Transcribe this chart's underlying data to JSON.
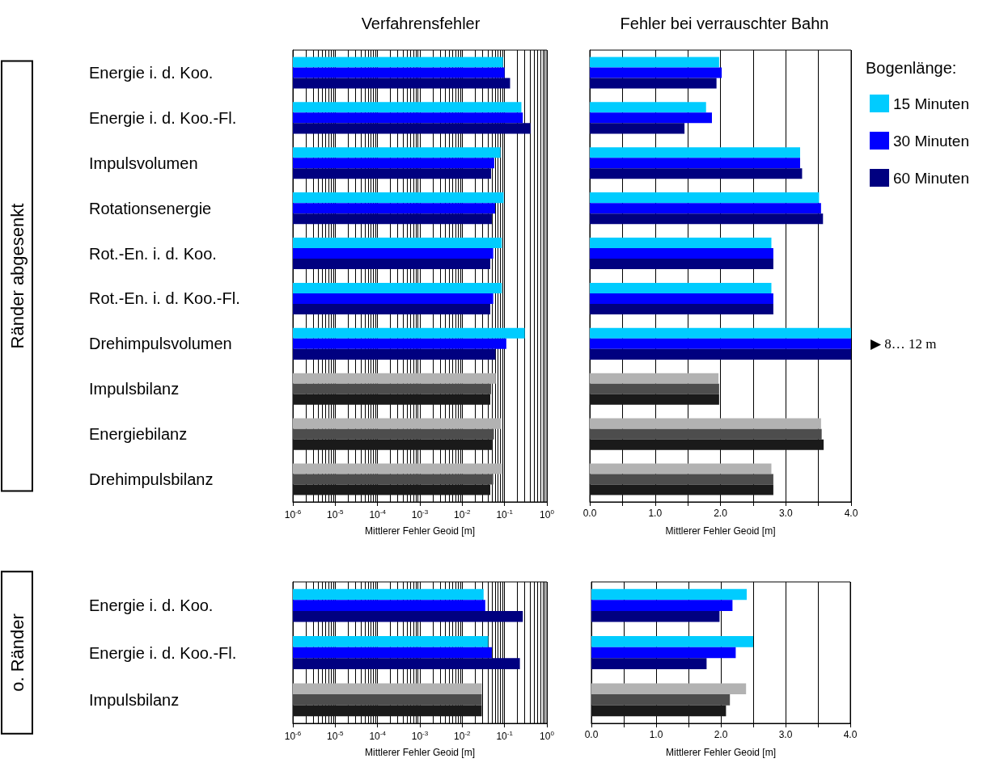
{
  "chart_data": [
    {
      "type": "bar",
      "orientation": "horizontal",
      "title": "Verfahrensfehler",
      "xlabel": "Mittlerer Fehler Geoid [m]",
      "ylabel": "Ränder abgesenkt",
      "log": "x",
      "grid": "x",
      "categories": [
        "Energie i. d. Koo.",
        "Energie i. d. Koo.-Fl.",
        "Impulsvolumen",
        "Rotationsenergie",
        "Rot.-En. i. d. Koo.",
        "Rot.-En. i. d. Koo.-Fl.",
        "Drehimpulsvolumen",
        "Impulsbilanz",
        "Energiebilanz",
        "Drehimpulsbilanz"
      ],
      "xlim": [
        1e-06,
        1
      ],
      "xticks": [
        {
          "value": 1e-06,
          "label": "10$^{-6}$"
        },
        {
          "value": 1e-05,
          "label": "10$^{-5}$"
        },
        {
          "value": 0.0001,
          "label": "10$^{-4}$"
        },
        {
          "value": 0.001,
          "label": "10$^{-3}$"
        },
        {
          "value": 0.01,
          "label": "10$^{-2}$"
        },
        {
          "value": 0.1,
          "label": "10$^{-1}$"
        },
        {
          "value": 1,
          "label": "10$^{0}$"
        }
      ],
      "series": [
        {
          "color": "#00ccff",
          "colors": [
            "#00ccff",
            "#00ccff",
            "#00ccff",
            "#00ccff",
            "#00ccff",
            "#00ccff",
            "#00ccff",
            "#b2b2b2",
            "#b2b2b2",
            "#b2b2b2"
          ],
          "values": [
            0.092,
            0.25,
            0.08,
            0.095,
            0.086,
            0.086,
            0.3,
            0.062,
            0.083,
            0.086
          ]
        },
        {
          "color": "#0000ff",
          "colors": [
            "#0000ff",
            "#0000ff",
            "#0000ff",
            "#0000ff",
            "#0000ff",
            "#0000ff",
            "#0000ff",
            "#4d4d4d",
            "#4d4d4d",
            "#4d4d4d"
          ],
          "values": [
            0.1,
            0.27,
            0.057,
            0.06,
            0.054,
            0.054,
            0.11,
            0.048,
            0.056,
            0.054
          ]
        },
        {
          "color": "#000080",
          "colors": [
            "#000080",
            "#000080",
            "#000080",
            "#000080",
            "#000080",
            "#000080",
            "#000080",
            "#1a1a1a",
            "#1a1a1a",
            "#1a1a1a"
          ],
          "values": [
            0.135,
            0.41,
            0.048,
            0.05,
            0.046,
            0.046,
            0.061,
            0.046,
            0.05,
            0.046
          ]
        }
      ]
    },
    {
      "type": "bar",
      "orientation": "horizontal",
      "title": "Fehler bei verrauschter Bahn",
      "xlabel": "Mittlerer Fehler Geoid [m]",
      "grid": "x",
      "tick_labels": "x",
      "legend": "right",
      "legend_title": "Bogenlänge:",
      "annotations": [
        {
          "text": "▶ 8… 12 m",
          "x": 4,
          "y": "Drehimpulsvolumen"
        }
      ],
      "categories": [
        "Energie i. d. Koo.",
        "Energie i. d. Koo.-Fl.",
        "Impulsvolumen",
        "Rotationsenergie",
        "Rot.-En. i. d. Koo.",
        "Rot.-En. i. d. Koo.-Fl.",
        "Drehimpulsvolumen",
        "Impulsbilanz",
        "Energiebilanz",
        "Drehimpulsbilanz"
      ],
      "xlim": [
        0,
        4
      ],
      "xticks": [
        {
          "value": 0,
          "label": "0.0"
        },
        {
          "value": 0.5,
          "label": null
        },
        {
          "value": 1,
          "label": "1.0"
        },
        {
          "value": 1.5,
          "label": null
        },
        {
          "value": 2,
          "label": "2.0"
        },
        {
          "value": 2.5,
          "label": null
        },
        {
          "value": 3,
          "label": "3.0"
        },
        {
          "value": 3.5,
          "label": null
        },
        {
          "value": 4,
          "label": "4.0"
        }
      ],
      "series": [
        {
          "name": "15 Minuten",
          "color": "#00ccff",
          "colors": [
            "#00ccff",
            "#00ccff",
            "#00ccff",
            "#00ccff",
            "#00ccff",
            "#00ccff",
            "#00ccff",
            "#b2b2b2",
            "#b2b2b2",
            "#b2b2b2"
          ],
          "values": [
            1.98,
            1.78,
            3.22,
            3.51,
            2.78,
            2.78,
            4,
            1.97,
            3.54,
            2.78
          ]
        },
        {
          "name": "30 Minuten",
          "color": "#0000ff",
          "colors": [
            "#0000ff",
            "#0000ff",
            "#0000ff",
            "#0000ff",
            "#0000ff",
            "#0000ff",
            "#0000ff",
            "#4d4d4d",
            "#4d4d4d",
            "#4d4d4d"
          ],
          "values": [
            2.02,
            1.87,
            3.22,
            3.54,
            2.81,
            2.81,
            4,
            1.98,
            3.55,
            2.81
          ]
        },
        {
          "name": "60 Minuten",
          "color": "#000080",
          "colors": [
            "#000080",
            "#000080",
            "#000080",
            "#000080",
            "#000080",
            "#000080",
            "#000080",
            "#1a1a1a",
            "#1a1a1a",
            "#1a1a1a"
          ],
          "values": [
            1.94,
            1.45,
            3.25,
            3.57,
            2.81,
            2.81,
            4,
            1.98,
            3.58,
            2.81
          ]
        }
      ]
    },
    {
      "type": "bar",
      "orientation": "horizontal",
      "xlabel": "Mittlerer Fehler Geoid [m]",
      "ylabel": "o. Ränder",
      "log": "x",
      "grid": "x",
      "categories": [
        "Energie i. d. Koo.",
        "Energie i. d. Koo.-Fl.",
        "Impulsbilanz"
      ],
      "xlim": [
        1e-06,
        1
      ],
      "xticks": [
        {
          "value": 1e-06,
          "label": "10$^{-6}$"
        },
        {
          "value": 1e-05,
          "label": "10$^{-5}$"
        },
        {
          "value": 0.0001,
          "label": "10$^{-4}$"
        },
        {
          "value": 0.001,
          "label": "10$^{-3}$"
        },
        {
          "value": 0.01,
          "label": "10$^{-2}$"
        },
        {
          "value": 0.1,
          "label": "10$^{-1}$"
        },
        {
          "value": 1,
          "label": "10$^{0}$"
        }
      ],
      "series": [
        {
          "color": "#00ccff",
          "colors": [
            "#00ccff",
            "#00ccff",
            "#b2b2b2"
          ],
          "values": [
            0.032,
            0.041,
            0.029
          ]
        },
        {
          "color": "#0000ff",
          "colors": [
            "#0000ff",
            "#0000ff",
            "#4d4d4d"
          ],
          "values": [
            0.035,
            0.05,
            0.029
          ]
        },
        {
          "color": "#000080",
          "colors": [
            "#000080",
            "#000080",
            "#1a1a1a"
          ],
          "values": [
            0.27,
            0.23,
            0.029
          ]
        }
      ]
    },
    {
      "type": "bar",
      "orientation": "horizontal",
      "xlabel": "Mittlerer Fehler Geoid [m]",
      "grid": "x",
      "tick_labels": "x",
      "categories": [
        "Energie i. d. Koo.",
        "Energie i. d. Koo.-Fl.",
        "Impulsbilanz"
      ],
      "xlim": [
        0,
        4
      ],
      "xticks": [
        {
          "value": 0,
          "label": "0.0"
        },
        {
          "value": 0.5,
          "label": null
        },
        {
          "value": 1,
          "label": "1.0"
        },
        {
          "value": 1.5,
          "label": null
        },
        {
          "value": 2,
          "label": "2.0"
        },
        {
          "value": 2.5,
          "label": null
        },
        {
          "value": 3,
          "label": "3.0"
        },
        {
          "value": 3.5,
          "label": null
        },
        {
          "value": 4,
          "label": "4.0"
        }
      ],
      "series": [
        {
          "color": "#00ccff",
          "colors": [
            "#00ccff",
            "#00ccff",
            "#b2b2b2"
          ],
          "values": [
            2.4,
            2.5,
            2.39
          ]
        },
        {
          "color": "#0000ff",
          "colors": [
            "#0000ff",
            "#0000ff",
            "#4d4d4d"
          ],
          "values": [
            2.18,
            2.23,
            2.14
          ]
        },
        {
          "color": "#000080",
          "colors": [
            "#000080",
            "#000080",
            "#1a1a1a"
          ],
          "values": [
            1.98,
            1.78,
            2.08
          ]
        }
      ]
    }
  ]
}
